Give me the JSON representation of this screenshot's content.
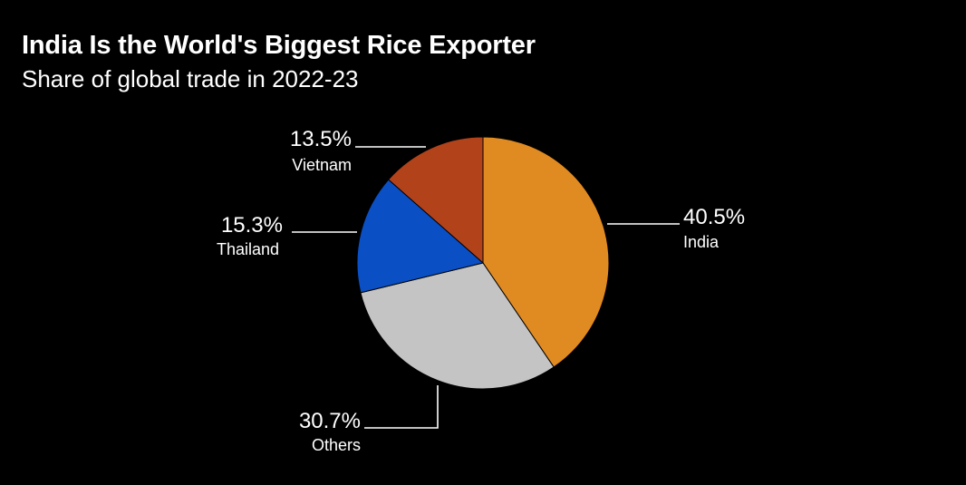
{
  "header": {
    "title": "India Is the World's Biggest Rice Exporter",
    "subtitle": "Share of global trade in 2022-23"
  },
  "chart_data": {
    "type": "pie",
    "title": "India Is the World's Biggest Rice Exporter",
    "subtitle": "Share of global trade in 2022-23",
    "unit": "%",
    "start_angle_deg": 0,
    "direction": "clockwise",
    "slices": [
      {
        "label": "India",
        "value": 40.5,
        "display": "40.5%",
        "color": "#e08a22"
      },
      {
        "label": "Others",
        "value": 30.7,
        "display": "30.7%",
        "color": "#c4c4c4"
      },
      {
        "label": "Thailand",
        "value": 15.3,
        "display": "15.3%",
        "color": "#0a4fc4"
      },
      {
        "label": "Vietnam",
        "value": 13.5,
        "display": "13.5%",
        "color": "#b2421a"
      }
    ],
    "slice_border_color": "#000000",
    "background": "#000000",
    "legend": "none",
    "labels": "outside-with-leader-lines"
  }
}
